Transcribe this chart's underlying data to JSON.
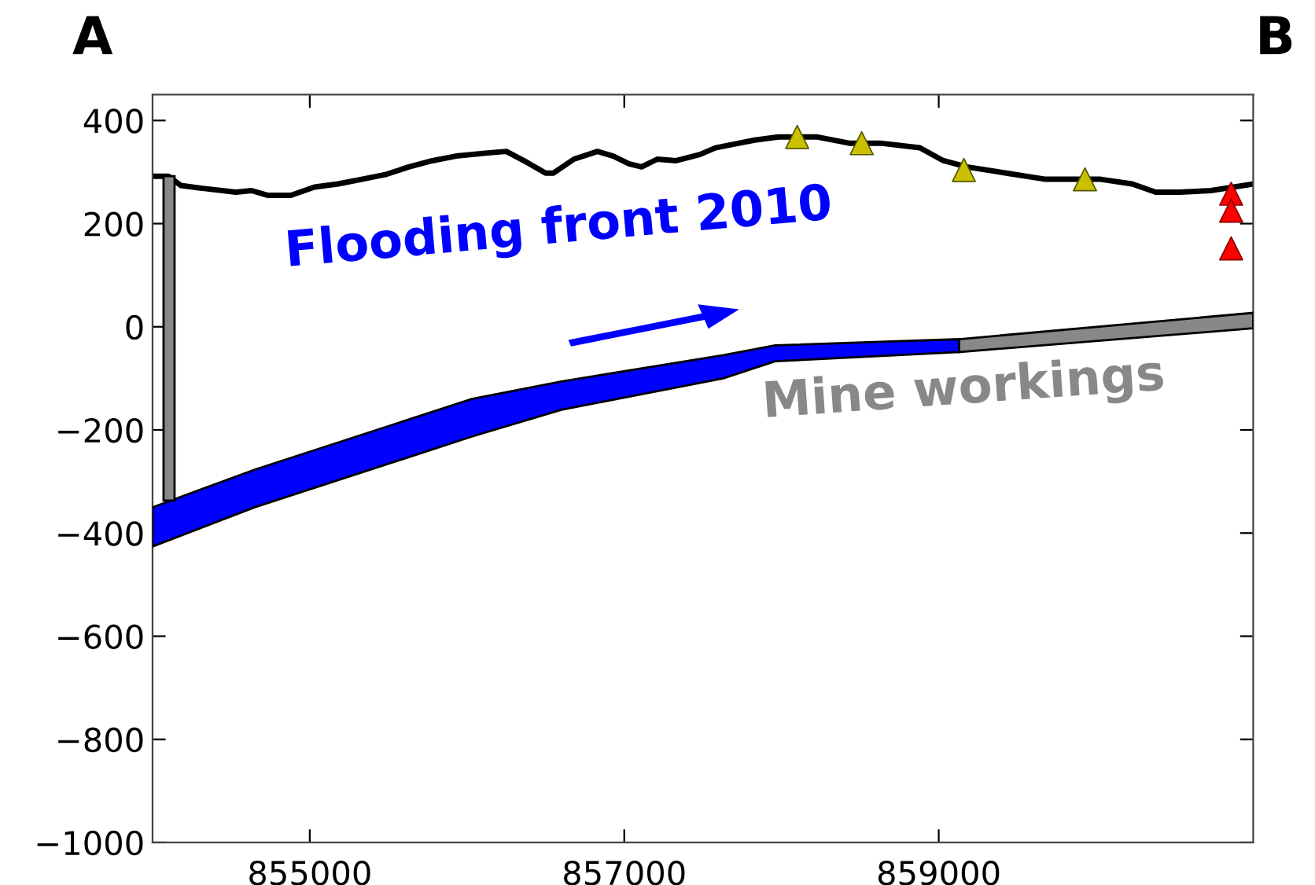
{
  "chart_data": {
    "type": "line",
    "annotations": [
      "A",
      "B"
    ],
    "xlim": [
      854000,
      861000
    ],
    "xticks": [
      855000,
      857000,
      859000
    ],
    "ylim": [
      -1000,
      450
    ],
    "yticks": [
      {
        "value": -1000,
        "label": "−1000"
      },
      {
        "value": -800,
        "label": "−800"
      },
      {
        "value": -600,
        "label": "−600"
      },
      {
        "value": -400,
        "label": "−400"
      },
      {
        "value": -200,
        "label": "−200"
      },
      0,
      200,
      400
    ],
    "series": [
      {
        "color": "#000000",
        "x": [
          854000,
          854100,
          854180,
          854330,
          854530,
          854630,
          854730,
          854880,
          855030,
          855180,
          855330,
          855480,
          855630,
          855780,
          855930,
          856130,
          856250,
          856380,
          856500,
          856550,
          856680,
          856830,
          856930,
          857030,
          857110,
          857210,
          857330,
          857480,
          857580,
          857730,
          857830,
          857980,
          858080,
          858230,
          858430,
          858630,
          858880,
          859030,
          859180,
          859430,
          859680,
          860030,
          860230,
          860380,
          860530,
          860730,
          861000
        ],
        "values": [
          292,
          292,
          274,
          268,
          261,
          264,
          255,
          255,
          271,
          277,
          286,
          295,
          310,
          322,
          331,
          337,
          340,
          319,
          298,
          298,
          325,
          340,
          331,
          316,
          310,
          325,
          322,
          334,
          347,
          356,
          362,
          368,
          368,
          368,
          356,
          356,
          347,
          322,
          310,
          298,
          286,
          286,
          277,
          261,
          261,
          264,
          277
        ]
      },
      {
        "type": "area",
        "name": "Flooding front 2010",
        "color": "#0000ff",
        "x": [
          854000,
          854650,
          856030,
          856600,
          857630,
          857960,
          859130,
          859130,
          857960,
          857630,
          856600,
          856030,
          854650,
          854000
        ],
        "values": [
          -350,
          -277,
          -140,
          -106,
          -55,
          -36,
          -24,
          -49,
          -67,
          -100,
          -161,
          -213,
          -350,
          -426
        ]
      },
      {
        "type": "area",
        "name": "Mine workings",
        "color": "#888888",
        "x": [
          859130,
          861000,
          861000,
          859130
        ],
        "values": [
          -24,
          27,
          -3,
          -49
        ]
      },
      {
        "type": "area",
        "color": "#888888",
        "x": [
          854070,
          854140,
          854140,
          854070
        ],
        "values": [
          292,
          292,
          -337,
          -337
        ]
      },
      {
        "type": "scatter",
        "color": "#c8c000",
        "marker": "triangle",
        "x": [
          858100,
          858510,
          859160,
          859930
        ],
        "values": [
          368,
          356,
          304,
          286
        ]
      },
      {
        "type": "scatter",
        "color": "#ff0000",
        "marker": "triangle",
        "x": [
          860860,
          860860,
          860860
        ],
        "values": [
          258,
          225,
          152
        ]
      }
    ]
  }
}
